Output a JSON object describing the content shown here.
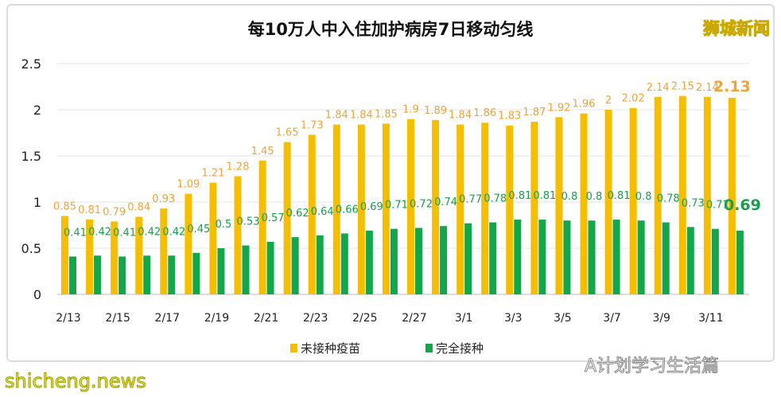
{
  "chart_data": {
    "type": "bar",
    "title": "每10万人中入住加护病房7日移动匀线",
    "categories": [
      "2/13",
      "2/14",
      "2/15",
      "2/16",
      "2/17",
      "2/18",
      "2/19",
      "2/20",
      "2/21",
      "2/22",
      "2/23",
      "2/24",
      "2/25",
      "2/26",
      "2/27",
      "2/28",
      "3/1",
      "3/2",
      "3/3",
      "3/4",
      "3/5",
      "3/6",
      "3/7",
      "3/8",
      "3/9",
      "3/10",
      "3/11",
      "3/12"
    ],
    "xtick_labels": [
      "2/13",
      "2/15",
      "2/17",
      "2/19",
      "2/21",
      "2/23",
      "2/25",
      "2/27",
      "3/1",
      "3/3",
      "3/5",
      "3/7",
      "3/9",
      "3/11"
    ],
    "series": [
      {
        "name": "未接种疫苗",
        "color": "#f5bf00",
        "label_color": "#eea43a",
        "values": [
          0.85,
          0.81,
          0.79,
          0.84,
          0.93,
          1.09,
          1.21,
          1.28,
          1.45,
          1.65,
          1.73,
          1.84,
          1.84,
          1.85,
          1.9,
          1.89,
          1.84,
          1.86,
          1.83,
          1.87,
          1.92,
          1.96,
          2,
          2.02,
          2.14,
          2.15,
          2.14,
          2.13
        ]
      },
      {
        "name": "完全接种",
        "color": "#13a64a",
        "label_color": "#1a9e4a",
        "values": [
          0.41,
          0.42,
          0.41,
          0.42,
          0.42,
          0.45,
          0.5,
          0.53,
          0.57,
          0.62,
          0.64,
          0.66,
          0.69,
          0.71,
          0.72,
          0.74,
          0.77,
          0.78,
          0.81,
          0.81,
          0.8,
          0.8,
          0.81,
          0.8,
          0.78,
          0.73,
          0.71,
          0.69
        ]
      }
    ],
    "yticks": [
      0,
      0.5,
      1,
      1.5,
      2,
      2.5
    ],
    "ylim": [
      0,
      2.5
    ],
    "grid": true,
    "legend": "bottom"
  },
  "logo": "狮城新闻",
  "watermark": "shicheng.news",
  "wechat": "A计划学习生活篇"
}
